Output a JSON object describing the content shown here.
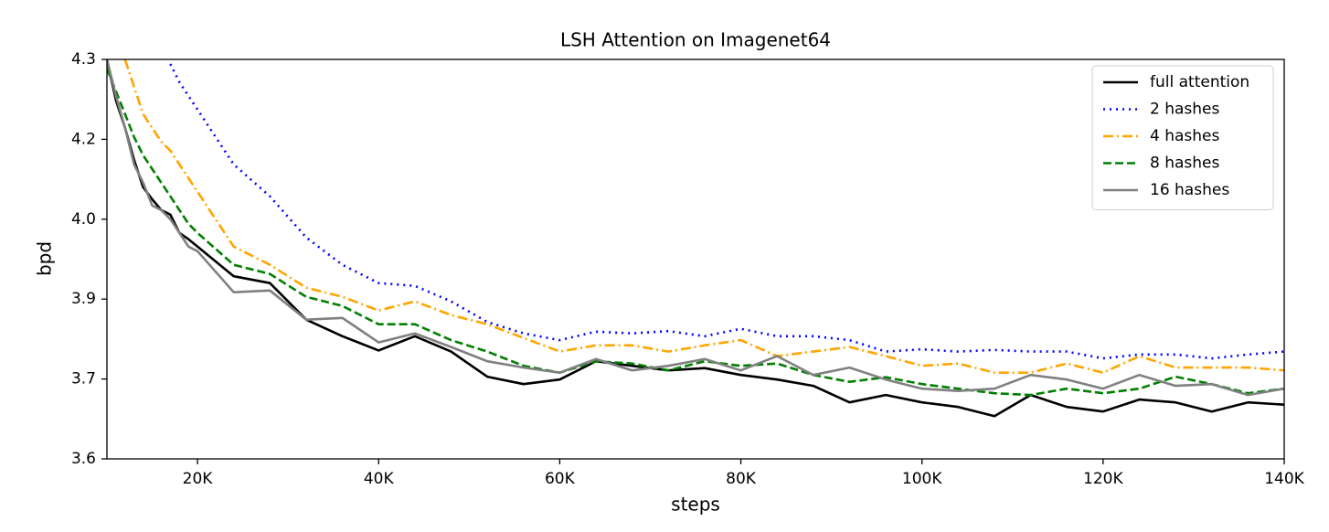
{
  "chart_data": {
    "type": "line",
    "title": "LSH Attention on Imagenet64",
    "xlabel": "steps",
    "ylabel": "bpd",
    "x": [
      10000,
      11000,
      12000,
      13000,
      14000,
      15000,
      16000,
      17000,
      18000,
      19000,
      20000,
      24000,
      28000,
      32000,
      36000,
      40000,
      44000,
      48000,
      52000,
      56000,
      60000,
      64000,
      68000,
      72000,
      76000,
      80000,
      84000,
      88000,
      92000,
      96000,
      100000,
      104000,
      108000,
      112000,
      116000,
      120000,
      124000,
      128000,
      132000,
      136000,
      140000
    ],
    "xlim": [
      10000,
      140000
    ],
    "xticks": [
      {
        "value": 20000,
        "label": "20K"
      },
      {
        "value": 40000,
        "label": "40K"
      },
      {
        "value": 60000,
        "label": "60K"
      },
      {
        "value": 80000,
        "label": "80K"
      },
      {
        "value": 100000,
        "label": "100K"
      },
      {
        "value": 120000,
        "label": "120K"
      },
      {
        "value": 140000,
        "label": "140K"
      }
    ],
    "ylim": [
      3.6,
      4.3
    ],
    "yticks": [
      3.6,
      {
        "value": 3.74,
        "label": "3.7"
      },
      {
        "value": 3.88,
        "label": "3.9"
      },
      {
        "value": 4.02,
        "label": "4.0"
      },
      {
        "value": 4.16,
        "label": "4.2"
      },
      4.3
    ],
    "legend": "upper right",
    "series": [
      {
        "name": "full attention",
        "color": "#000000",
        "linestyle": "solid",
        "values": [
          4.3,
          4.228,
          4.18,
          4.124,
          4.076,
          4.055,
          4.036,
          4.028,
          3.996,
          3.985,
          3.972,
          3.92,
          3.908,
          3.844,
          3.815,
          3.79,
          3.815,
          3.788,
          3.744,
          3.731,
          3.739,
          3.771,
          3.763,
          3.755,
          3.759,
          3.747,
          3.739,
          3.728,
          3.699,
          3.712,
          3.699,
          3.691,
          3.675,
          3.712,
          3.691,
          3.683,
          3.704,
          3.699,
          3.683,
          3.699,
          3.695
        ]
      },
      {
        "name": "2 hashes",
        "color": "#0000ff",
        "linestyle": "dotted",
        "values": [
          null,
          null,
          null,
          null,
          null,
          null,
          null,
          4.292,
          4.26,
          4.236,
          4.212,
          4.116,
          4.06,
          3.988,
          3.94,
          3.908,
          3.903,
          3.876,
          3.84,
          3.82,
          3.808,
          3.823,
          3.82,
          3.824,
          3.815,
          3.828,
          3.815,
          3.815,
          3.808,
          3.788,
          3.792,
          3.788,
          3.791,
          3.788,
          3.788,
          3.776,
          3.783,
          3.783,
          3.776,
          3.783,
          3.788
        ]
      },
      {
        "name": "4 hashes",
        "color": "#ffa500",
        "linestyle": "dashdot",
        "values": [
          null,
          null,
          4.3,
          4.252,
          4.204,
          4.18,
          4.156,
          4.14,
          4.116,
          4.092,
          4.068,
          3.972,
          3.94,
          3.9,
          3.884,
          3.86,
          3.876,
          3.852,
          3.836,
          3.812,
          3.788,
          3.799,
          3.799,
          3.788,
          3.799,
          3.808,
          3.78,
          3.788,
          3.796,
          3.78,
          3.763,
          3.767,
          3.751,
          3.751,
          3.767,
          3.751,
          3.78,
          3.76,
          3.76,
          3.76,
          3.755
        ]
      },
      {
        "name": "8 hashes",
        "color": "#008000",
        "linestyle": "dashed",
        "values": [
          4.284,
          4.244,
          4.204,
          4.164,
          4.132,
          4.108,
          4.084,
          4.06,
          4.036,
          4.012,
          3.996,
          3.94,
          3.924,
          3.884,
          3.868,
          3.836,
          3.836,
          3.808,
          3.788,
          3.763,
          3.751,
          3.771,
          3.767,
          3.755,
          3.771,
          3.763,
          3.767,
          3.747,
          3.735,
          3.743,
          3.731,
          3.723,
          3.715,
          3.712,
          3.723,
          3.715,
          3.723,
          3.744,
          3.731,
          3.715,
          3.723
        ]
      },
      {
        "name": "16 hashes",
        "color": "#808080",
        "linestyle": "solid",
        "values": [
          4.3,
          4.236,
          4.18,
          4.116,
          4.084,
          4.044,
          4.036,
          4.02,
          3.996,
          3.972,
          3.964,
          3.892,
          3.895,
          3.844,
          3.847,
          3.804,
          3.82,
          3.796,
          3.771,
          3.76,
          3.751,
          3.775,
          3.755,
          3.763,
          3.775,
          3.755,
          3.78,
          3.747,
          3.76,
          3.739,
          3.723,
          3.719,
          3.723,
          3.747,
          3.739,
          3.723,
          3.747,
          3.728,
          3.731,
          3.712,
          3.723
        ]
      }
    ]
  }
}
